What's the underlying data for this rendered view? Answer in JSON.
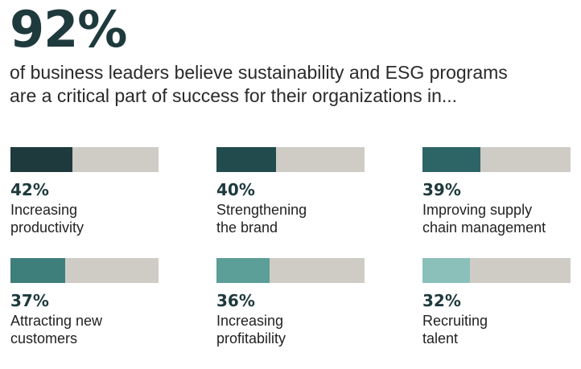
{
  "headline": {
    "value": "92%",
    "text": "of business leaders believe sustainability and ESG programs are a critical part of success for their organizations in..."
  },
  "chart_data": {
    "type": "bar",
    "orientation": "horizontal",
    "xlim": [
      0,
      100
    ],
    "track_color": "#cfccc6",
    "items": [
      {
        "value": 42,
        "value_label": "42%",
        "label": "Increasing\nproductivity",
        "color": "#1e3a3d"
      },
      {
        "value": 40,
        "value_label": "40%",
        "label": "Strengthening\nthe brand",
        "color": "#214b4c"
      },
      {
        "value": 39,
        "value_label": "39%",
        "label": "Improving supply\nchain management",
        "color": "#2d6466"
      },
      {
        "value": 37,
        "value_label": "37%",
        "label": "Attracting new\ncustomers",
        "color": "#3f7f7b"
      },
      {
        "value": 36,
        "value_label": "36%",
        "label": "Increasing\nprofitability",
        "color": "#5c9e98"
      },
      {
        "value": 32,
        "value_label": "32%",
        "label": "Recruiting\ntalent",
        "color": "#8bc0ba"
      }
    ]
  }
}
